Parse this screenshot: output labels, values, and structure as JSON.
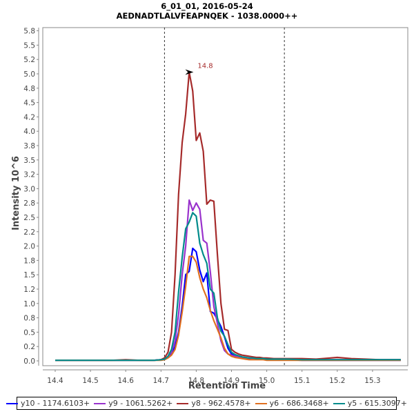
{
  "chart_data": {
    "type": "line",
    "title": "6_01_01, 2016-05-24",
    "subtitle": "AEDNADTLALVFEAPNQEK - 1038.0000++",
    "xlabel": "Retention Time",
    "ylabel": "Intensity 10^6",
    "xlim": [
      14.37,
      15.39
    ],
    "ylim": [
      0,
      5.9
    ],
    "x_ticks": [
      14.4,
      14.5,
      14.6,
      14.7,
      14.8,
      14.9,
      15.0,
      15.1,
      15.2,
      15.3
    ],
    "x_tick_labels": [
      "14.4",
      "14.5",
      "14.6",
      "14.7",
      "14.8",
      "14.9",
      "15.0",
      "15.1",
      "15.2",
      "15.3"
    ],
    "y_ticks": [
      0.0,
      0.25,
      0.5,
      0.75,
      1.0,
      1.25,
      1.5,
      1.75,
      2.0,
      2.25,
      2.5,
      2.75,
      3.0,
      3.25,
      3.5,
      3.75,
      4.0,
      4.25,
      4.5,
      4.75,
      5.0,
      5.25,
      5.5,
      5.75
    ],
    "y_tick_labels": [
      "0.0",
      "0.2",
      "0.5",
      "0.8",
      "1.0",
      "1.2",
      "1.5",
      "1.8",
      "2.0",
      "2.2",
      "2.5",
      "2.8",
      "3.0",
      "3.2",
      "3.5",
      "3.8",
      "4.0",
      "4.2",
      "4.5",
      "4.8",
      "5.0",
      "5.2",
      "5.5",
      "5.8"
    ],
    "grid": false,
    "vertical_markers": [
      14.71,
      15.05
    ],
    "annotation": {
      "text": "14.8",
      "x": 14.8,
      "y": 5.03,
      "color": "#a52a2a"
    },
    "legend_position": "bottom",
    "x": [
      14.4,
      14.44,
      14.48,
      14.52,
      14.56,
      14.6,
      14.64,
      14.68,
      14.7,
      14.71,
      14.72,
      14.73,
      14.74,
      14.75,
      14.76,
      14.77,
      14.78,
      14.79,
      14.8,
      14.81,
      14.82,
      14.83,
      14.84,
      14.85,
      14.86,
      14.87,
      14.88,
      14.89,
      14.9,
      14.91,
      14.92,
      14.93,
      14.94,
      14.95,
      14.96,
      14.97,
      14.98,
      14.99,
      15.0,
      15.02,
      15.04,
      15.06,
      15.1,
      15.14,
      15.18,
      15.2,
      15.22,
      15.24,
      15.28,
      15.32,
      15.38
    ],
    "series": [
      {
        "name": "y10 - 1174.6103+",
        "color": "#0000ff",
        "values": [
          0.01,
          0.01,
          0.01,
          0.01,
          0.01,
          0.01,
          0.01,
          0.01,
          0.02,
          0.03,
          0.06,
          0.12,
          0.25,
          0.5,
          0.95,
          1.5,
          1.56,
          1.96,
          1.9,
          1.58,
          1.38,
          1.53,
          0.86,
          0.83,
          0.72,
          0.6,
          0.42,
          0.22,
          0.12,
          0.09,
          0.08,
          0.06,
          0.05,
          0.04,
          0.04,
          0.03,
          0.03,
          0.03,
          0.02,
          0.02,
          0.02,
          0.02,
          0.01,
          0.01,
          0.01,
          0.01,
          0.01,
          0.01,
          0.01,
          0.01,
          0.01
        ]
      },
      {
        "name": "y9 - 1061.5262+",
        "color": "#9932cc",
        "values": [
          0.01,
          0.01,
          0.01,
          0.01,
          0.01,
          0.01,
          0.01,
          0.01,
          0.02,
          0.03,
          0.07,
          0.15,
          0.35,
          0.8,
          1.5,
          2.0,
          2.8,
          2.62,
          2.75,
          2.64,
          2.1,
          2.05,
          1.55,
          0.95,
          0.65,
          0.35,
          0.18,
          0.12,
          0.1,
          0.08,
          0.07,
          0.06,
          0.05,
          0.05,
          0.04,
          0.04,
          0.04,
          0.03,
          0.03,
          0.03,
          0.03,
          0.03,
          0.02,
          0.02,
          0.02,
          0.02,
          0.02,
          0.02,
          0.02,
          0.02,
          0.02
        ]
      },
      {
        "name": "y8 - 962.4578+",
        "color": "#a52a2a",
        "values": [
          0.01,
          0.01,
          0.01,
          0.01,
          0.01,
          0.02,
          0.01,
          0.01,
          0.02,
          0.05,
          0.15,
          0.5,
          1.5,
          2.9,
          3.8,
          4.3,
          5.03,
          4.7,
          3.84,
          3.97,
          3.65,
          2.73,
          2.8,
          2.78,
          1.85,
          1.0,
          0.55,
          0.53,
          0.2,
          0.15,
          0.12,
          0.1,
          0.09,
          0.08,
          0.07,
          0.06,
          0.06,
          0.05,
          0.05,
          0.04,
          0.04,
          0.04,
          0.04,
          0.03,
          0.05,
          0.06,
          0.05,
          0.04,
          0.03,
          0.02,
          0.02
        ]
      },
      {
        "name": "y6 - 686.3468+",
        "color": "#e07020",
        "values": [
          0.01,
          0.01,
          0.01,
          0.01,
          0.01,
          0.01,
          0.01,
          0.01,
          0.01,
          0.02,
          0.05,
          0.1,
          0.2,
          0.45,
          0.85,
          1.3,
          1.82,
          1.82,
          1.72,
          1.45,
          1.25,
          1.1,
          0.88,
          0.7,
          0.55,
          0.4,
          0.22,
          0.12,
          0.08,
          0.06,
          0.05,
          0.04,
          0.03,
          0.02,
          0.02,
          0.02,
          0.02,
          0.02,
          0.01,
          0.01,
          0.01,
          0.01,
          0.01,
          0.01,
          0.01,
          0.01,
          0.01,
          0.01,
          0.01,
          0.01,
          0.01
        ]
      },
      {
        "name": "y5 - 615.3097+",
        "color": "#008b8b",
        "values": [
          0.01,
          0.01,
          0.01,
          0.01,
          0.01,
          0.01,
          0.01,
          0.01,
          0.02,
          0.03,
          0.08,
          0.2,
          0.5,
          1.2,
          1.8,
          2.3,
          2.42,
          2.58,
          2.52,
          2.05,
          1.85,
          1.7,
          1.25,
          1.18,
          0.75,
          0.52,
          0.43,
          0.28,
          0.15,
          0.11,
          0.09,
          0.07,
          0.06,
          0.05,
          0.05,
          0.04,
          0.04,
          0.04,
          0.03,
          0.03,
          0.03,
          0.03,
          0.02,
          0.02,
          0.02,
          0.02,
          0.02,
          0.02,
          0.02,
          0.02,
          0.02
        ]
      }
    ]
  }
}
